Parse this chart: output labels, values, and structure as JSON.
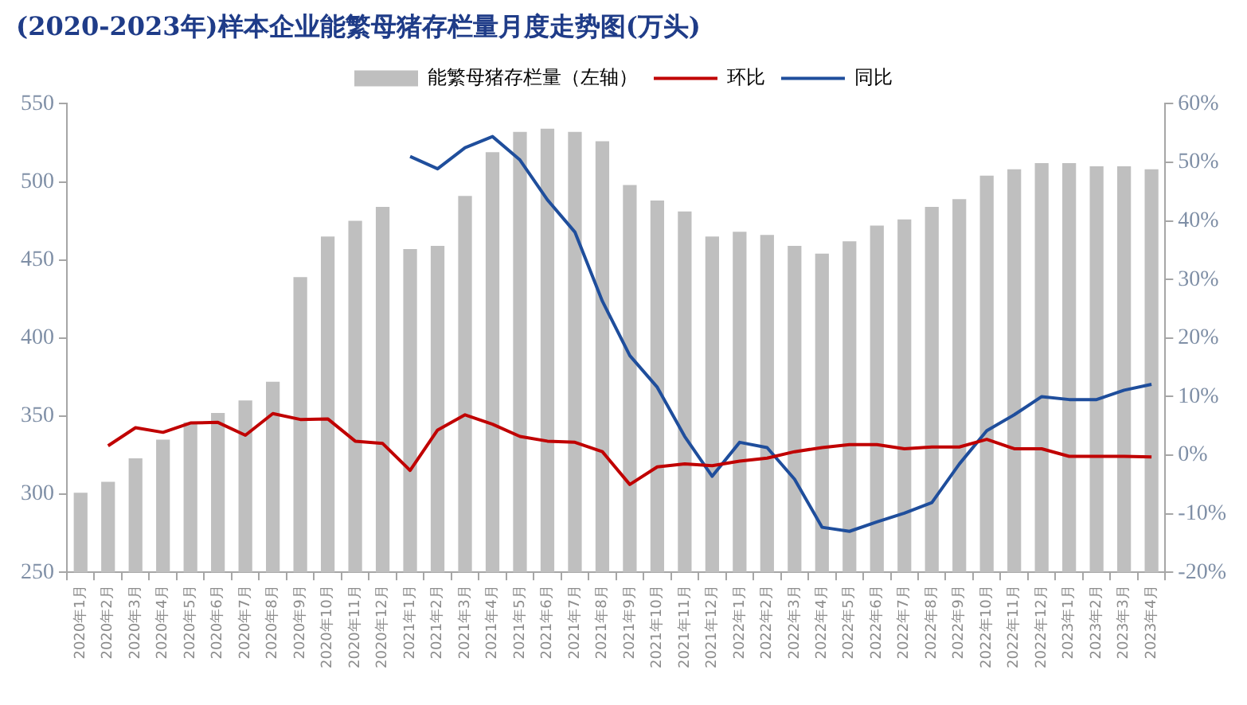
{
  "chart_data": {
    "type": "bar",
    "title": "(2020-2023年)样本企业能繁母猪存栏量月度走势图(万头)",
    "categories": [
      "2020年1月",
      "2020年2月",
      "2020年3月",
      "2020年4月",
      "2020年5月",
      "2020年6月",
      "2020年7月",
      "2020年8月",
      "2020年9月",
      "2020年10月",
      "2020年11月",
      "2020年12月",
      "2021年1月",
      "2021年2月",
      "2021年3月",
      "2021年4月",
      "2021年5月",
      "2021年6月",
      "2021年7月",
      "2021年8月",
      "2021年9月",
      "2021年10月",
      "2021年11月",
      "2021年12月",
      "2022年1月",
      "2022年2月",
      "2022年3月",
      "2022年4月",
      "2022年5月",
      "2022年6月",
      "2022年7月",
      "2022年8月",
      "2022年9月",
      "2022年10月",
      "2022年11月",
      "2022年12月",
      "2023年1月",
      "2023年2月",
      "2023年3月",
      "2023年4月"
    ],
    "series": [
      {
        "name": "能繁母猪存栏量（左轴）",
        "color": "#bfbfbf",
        "values": [
          301,
          308,
          323,
          335,
          346,
          352,
          360,
          372,
          439,
          465,
          475,
          484,
          457,
          459,
          491,
          519,
          532,
          534,
          532,
          526,
          498,
          488,
          481,
          465,
          468,
          466,
          459,
          454,
          462,
          472,
          476,
          484,
          489,
          504,
          508,
          512,
          512,
          510,
          510,
          508
        ]
      },
      {
        "name": "环比",
        "type": "line",
        "axis": "y2",
        "color": "#c00000",
        "values": [
          null,
          1.6,
          4.7,
          3.9,
          5.5,
          5.6,
          3.4,
          7.1,
          6.1,
          6.2,
          2.4,
          2.0,
          -2.6,
          4.3,
          6.9,
          5.3,
          3.2,
          2.4,
          2.2,
          0.6,
          -5,
          -2,
          -1.5,
          -1.8,
          -1,
          -0.5,
          0.6,
          1.3,
          1.8,
          1.8,
          1.1,
          1.4,
          1.4,
          2.7,
          1.1,
          1.1,
          -0.2,
          -0.2,
          -0.2,
          -0.3
        ]
      },
      {
        "name": "同比",
        "type": "line",
        "axis": "y2",
        "color": "#1f4e9c",
        "values": [
          null,
          null,
          null,
          null,
          null,
          null,
          null,
          null,
          null,
          null,
          null,
          null,
          51.0,
          48.9,
          52.5,
          54.4,
          50.4,
          43.6,
          38.1,
          26.3,
          17,
          11.6,
          3.2,
          -3.6,
          2.2,
          1.3,
          -4.1,
          -12.3,
          -13.0,
          -11.4,
          -9.9,
          -8.1,
          -1.5,
          4.2,
          6.9,
          10,
          9.5,
          9.5,
          11.1,
          12.1
        ]
      }
    ],
    "ylim": [
      250,
      550
    ],
    "yticks": [
      250,
      300,
      350,
      400,
      450,
      500,
      550
    ],
    "y2lim": [
      -20,
      60
    ],
    "y2ticks": [
      {
        "value": -20,
        "label": "-20%"
      },
      {
        "value": -10,
        "label": "-10%"
      },
      {
        "value": 0,
        "label": "0%"
      },
      {
        "value": 10,
        "label": "10%"
      },
      {
        "value": 20,
        "label": "20%"
      },
      {
        "value": 30,
        "label": "30%"
      },
      {
        "value": 40,
        "label": "40%"
      },
      {
        "value": 50,
        "label": "50%"
      },
      {
        "value": 60,
        "label": "60%"
      }
    ],
    "legend": "top",
    "marker": "none",
    "line_style": "solid"
  }
}
